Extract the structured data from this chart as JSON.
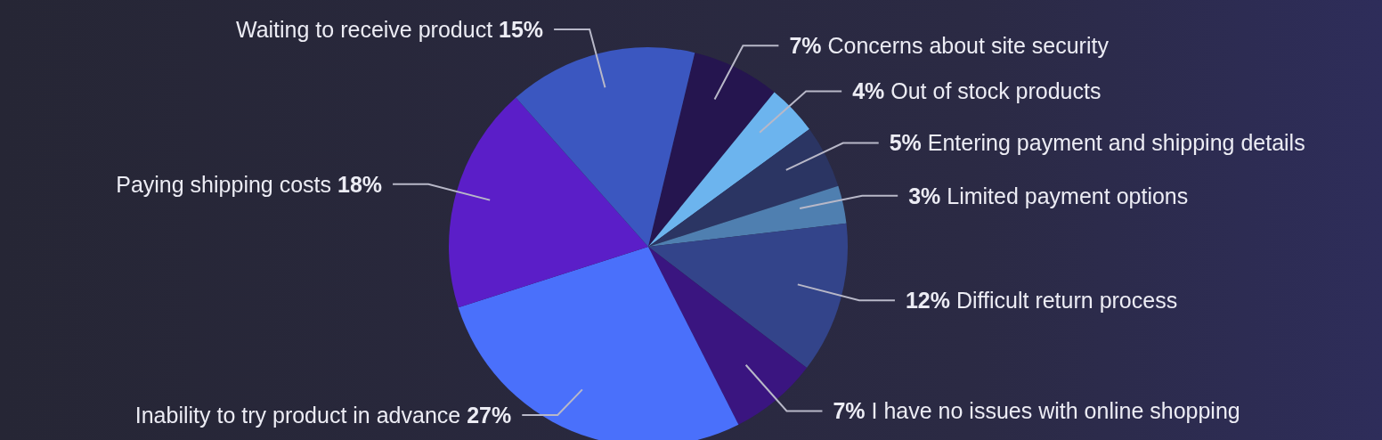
{
  "chart_data": {
    "type": "pie",
    "categories": [
      "Concerns about site security",
      "Out of stock products",
      "Entering payment and shipping details",
      "Limited payment options",
      "Difficult return process",
      "I have no issues with online shopping",
      "Inability to try product in advance",
      "Paying shipping costs",
      "Waiting to receive product"
    ],
    "values": [
      7,
      4,
      5,
      3,
      12,
      7,
      27,
      18,
      15
    ],
    "value_labels": [
      "7%",
      "4%",
      "5%",
      "3%",
      "12%",
      "7%",
      "27%",
      "18%",
      "15%"
    ],
    "colors": [
      "#25154f",
      "#6cb4ee",
      "#2b3563",
      "#4f7fb0",
      "#33448a",
      "#3a1580",
      "#4a70fb",
      "#5b1ec8",
      "#3b57c0"
    ]
  }
}
